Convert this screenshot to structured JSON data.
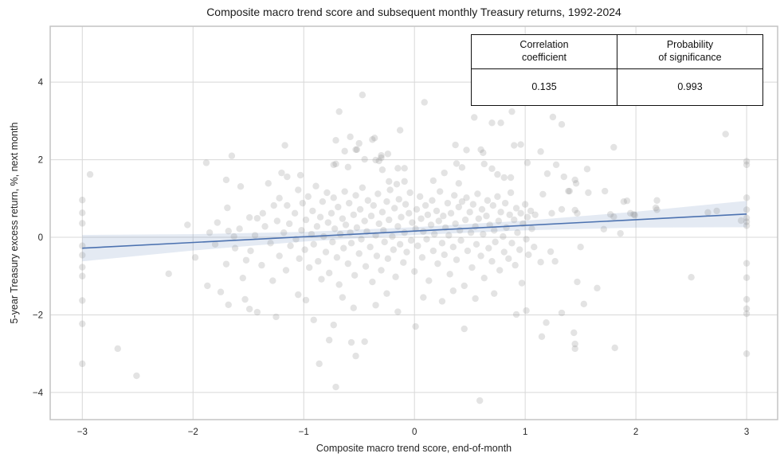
{
  "figure": {
    "title": "Composite macro trend score and subsequent monthly Treasury returns, 1992-2024",
    "background": "#ffffff"
  },
  "stats_table": {
    "col1": {
      "header_line1": "Correlation",
      "header_line2": "coefficient",
      "value": "0.135"
    },
    "col2": {
      "header_line1": "Probability",
      "header_line2": "of significance",
      "value": "0.993"
    }
  },
  "chart_data": {
    "type": "scatter",
    "title": "Composite macro trend score and subsequent monthly Treasury returns, 1992-2024",
    "xlabel": "Composite macro trend score, end-of-month",
    "ylabel": "5-year Treasury excess return, %, next month",
    "xlim": [
      -3.29,
      3.28
    ],
    "ylim": [
      -4.7,
      5.44
    ],
    "xticks": [
      -3,
      -2,
      -1,
      0,
      1,
      2,
      3
    ],
    "xtick_labels": [
      "−3",
      "−2",
      "−1",
      "0",
      "1",
      "2",
      "3"
    ],
    "yticks": [
      4,
      2,
      0,
      -2,
      -4
    ],
    "ytick_labels": [
      "4",
      "2",
      "0",
      "−2",
      "−4"
    ],
    "grid": true,
    "legend": null,
    "stats": {
      "correlation_coefficient": 0.135,
      "probability_of_significance": 0.993
    },
    "regression_line": {
      "x": [
        -3,
        3
      ],
      "y": [
        -0.28,
        0.6
      ]
    },
    "ci_band": {
      "x": [
        -3,
        -2,
        -1,
        0,
        1,
        2,
        3
      ],
      "upper": [
        0.06,
        0.08,
        0.14,
        0.26,
        0.43,
        0.66,
        0.94
      ],
      "lower": [
        -0.62,
        -0.34,
        -0.11,
        0.06,
        0.18,
        0.25,
        0.26
      ]
    },
    "style": {
      "accent": "#4c72b0",
      "band_color": "#4c72b0",
      "band_opacity": 0.15,
      "point_color": "#8c8c8c",
      "point_opacity": 0.24,
      "point_radius": 4.2,
      "grid_color": "#d8d8d8",
      "spine_color": "#c4c4c4",
      "text_color": "#262626"
    },
    "points": [
      [
        -3,
        0.96
      ],
      [
        -3,
        0.63
      ],
      [
        -3,
        0.36
      ],
      [
        -3,
        -0.22
      ],
      [
        -3,
        -0.46
      ],
      [
        -3,
        -0.77
      ],
      [
        -3,
        -1.0
      ],
      [
        -3,
        -1.63
      ],
      [
        -3,
        -2.23
      ],
      [
        -3,
        -3.26
      ],
      [
        -2.93,
        1.62
      ],
      [
        -2.68,
        -2.87
      ],
      [
        -2.51,
        -3.57
      ],
      [
        -2.22,
        -0.94
      ],
      [
        -2.05,
        0.32
      ],
      [
        -1.98,
        -0.52
      ],
      [
        -1.88,
        1.92
      ],
      [
        -1.87,
        -1.25
      ],
      [
        -1.75,
        -1.41
      ],
      [
        -1.68,
        -1.74
      ],
      [
        -1.53,
        -1.6
      ],
      [
        -1.49,
        -1.85
      ],
      [
        -1.42,
        -1.93
      ],
      [
        -1.7,
        1.48
      ],
      [
        -1.65,
        2.1
      ],
      [
        -1.57,
        1.31
      ],
      [
        -1.32,
        1.39
      ],
      [
        -1.2,
        1.66
      ],
      [
        -1.15,
        1.56
      ],
      [
        -1.03,
        1.6
      ],
      [
        -1.17,
        2.37
      ],
      [
        -1.69,
        0.76
      ],
      [
        -1.68,
        0.16
      ],
      [
        -1.63,
        0.02
      ],
      [
        -1.49,
        0.51
      ],
      [
        -1.42,
        0.49
      ],
      [
        -1.37,
        0.62
      ],
      [
        -1.27,
        0.82
      ],
      [
        -1.22,
        1.01
      ],
      [
        -1.15,
        0.82
      ],
      [
        -1.8,
        -0.18
      ],
      [
        -1.7,
        -0.69
      ],
      [
        -1.52,
        -0.59
      ],
      [
        -0.91,
        -2.13
      ],
      [
        -0.73,
        -2.26
      ],
      [
        -0.77,
        -2.65
      ],
      [
        -0.57,
        -2.71
      ],
      [
        -0.45,
        -2.69
      ],
      [
        -0.53,
        -3.06
      ],
      [
        -0.86,
        -3.26
      ],
      [
        -0.71,
        -3.86
      ],
      [
        0.01,
        -2.3
      ],
      [
        0.45,
        -2.36
      ],
      [
        0.59,
        -4.21
      ],
      [
        0.92,
        -1.99
      ],
      [
        1.01,
        -1.89
      ],
      [
        -0.47,
        3.67
      ],
      [
        0.09,
        3.48
      ],
      [
        -0.68,
        3.24
      ],
      [
        0.54,
        3.09
      ],
      [
        0.7,
        2.95
      ],
      [
        0.78,
        2.95
      ],
      [
        0.88,
        3.24
      ],
      [
        -0.13,
        2.76
      ],
      [
        -0.36,
        2.56
      ],
      [
        -0.71,
        2.5
      ],
      [
        -0.58,
        2.59
      ],
      [
        -0.5,
        2.42
      ],
      [
        -0.38,
        2.52
      ],
      [
        -0.52,
        2.26
      ],
      [
        0.37,
        2.38
      ],
      [
        0.47,
        2.25
      ],
      [
        0.6,
        2.26
      ],
      [
        0.62,
        2.18
      ],
      [
        0.9,
        2.37
      ],
      [
        0.96,
        2.39
      ],
      [
        1.14,
        2.21
      ],
      [
        -0.3,
        2.11
      ],
      [
        -0.24,
        2.15
      ],
      [
        -0.63,
        2.22
      ],
      [
        -0.53,
        2.26
      ],
      [
        -0.45,
        2.01
      ],
      [
        -0.35,
        1.99
      ],
      [
        -0.3,
        2.05
      ],
      [
        -0.71,
        1.89
      ],
      [
        -0.6,
        1.81
      ],
      [
        -0.73,
        1.87
      ],
      [
        -0.32,
        1.97
      ],
      [
        -0.29,
        1.74
      ],
      [
        -0.15,
        1.78
      ],
      [
        -0.09,
        1.78
      ],
      [
        0.27,
        1.66
      ],
      [
        0.38,
        1.9
      ],
      [
        0.43,
        1.8
      ],
      [
        0.63,
        1.89
      ],
      [
        0.7,
        1.77
      ],
      [
        0.75,
        1.62
      ],
      [
        0.81,
        1.54
      ],
      [
        0.87,
        1.54
      ],
      [
        1.02,
        1.92
      ],
      [
        1.2,
        1.64
      ],
      [
        0.17,
        1.46
      ],
      [
        0.4,
        1.39
      ],
      [
        -0.23,
        1.44
      ],
      [
        -0.16,
        1.37
      ],
      [
        -0.09,
        1.44
      ],
      [
        1.25,
        3.1
      ],
      [
        1.33,
        2.91
      ],
      [
        1.8,
        2.32
      ],
      [
        2.81,
        2.66
      ],
      [
        1.28,
        1.87
      ],
      [
        1.56,
        1.76
      ],
      [
        1.35,
        1.56
      ],
      [
        1.45,
        1.48
      ],
      [
        1.46,
        1.39
      ],
      [
        1.4,
        1.19
      ],
      [
        1.57,
        1.15
      ],
      [
        1.72,
        1.19
      ],
      [
        1.16,
        1.11
      ],
      [
        1.92,
        0.94
      ],
      [
        2.19,
        0.95
      ],
      [
        2.19,
        0.71
      ],
      [
        2.18,
        0.76
      ],
      [
        1.33,
        0.72
      ],
      [
        1.24,
        0.62
      ],
      [
        1.45,
        0.7
      ],
      [
        1.47,
        0.62
      ],
      [
        1.77,
        0.59
      ],
      [
        1.98,
        0.59
      ],
      [
        2.65,
        0.64
      ],
      [
        2.73,
        0.68
      ],
      [
        2.95,
        0.43
      ],
      [
        1.39,
        1.19
      ],
      [
        1.8,
        0.53
      ],
      [
        1.95,
        0.62
      ],
      [
        1.99,
        0.57
      ],
      [
        1.71,
        0.21
      ],
      [
        1.86,
        0.1
      ],
      [
        1.89,
        0.92
      ],
      [
        1.5,
        -0.25
      ],
      [
        1.23,
        -0.37
      ],
      [
        1.27,
        -0.62
      ],
      [
        1.14,
        -0.64
      ],
      [
        1.47,
        -1.15
      ],
      [
        1.65,
        -1.31
      ],
      [
        1.53,
        -1.72
      ],
      [
        1.33,
        -1.95
      ],
      [
        1.19,
        -2.2
      ],
      [
        1.15,
        -2.56
      ],
      [
        1.44,
        -2.46
      ],
      [
        1.45,
        -2.75
      ],
      [
        1.45,
        -2.87
      ],
      [
        1.81,
        -2.85
      ],
      [
        2.5,
        -1.03
      ],
      [
        3,
        1.96
      ],
      [
        3,
        1.87
      ],
      [
        3,
        1.02
      ],
      [
        3,
        0.71
      ],
      [
        3,
        0.5
      ],
      [
        3,
        0.4
      ],
      [
        3,
        0.3
      ],
      [
        3,
        -0.67
      ],
      [
        3,
        -1.04
      ],
      [
        3,
        -1.6
      ],
      [
        3,
        -1.84
      ],
      [
        3,
        -1.97
      ],
      [
        3,
        -3.0
      ],
      [
        -1.85,
        0.12
      ],
      [
        -1.78,
        0.38
      ],
      [
        -1.62,
        -0.28
      ],
      [
        -1.58,
        0.22
      ],
      [
        -1.55,
        -1.05
      ],
      [
        -1.48,
        -0.35
      ],
      [
        -1.44,
        0.05
      ],
      [
        -1.38,
        -0.72
      ],
      [
        -1.35,
        0.28
      ],
      [
        -1.3,
        -0.15
      ],
      [
        -1.28,
        -1.12
      ],
      [
        -1.24,
        0.42
      ],
      [
        -1.22,
        -0.48
      ],
      [
        -1.18,
        0.12
      ],
      [
        -1.16,
        -0.85
      ],
      [
        -1.13,
        0.35
      ],
      [
        -1.12,
        -0.22
      ],
      [
        -1.25,
        -2.05
      ],
      [
        -1.08,
        0.62
      ],
      [
        -1.07,
        -0.05
      ],
      [
        -1.05,
        1.22
      ],
      [
        -1.04,
        -0.55
      ],
      [
        -1.02,
        0.18
      ],
      [
        -1.01,
        0.88
      ],
      [
        -0.99,
        -0.32
      ],
      [
        -0.98,
        0.45
      ],
      [
        -0.96,
        1.05
      ],
      [
        -0.95,
        -0.78
      ],
      [
        -0.93,
        0.08
      ],
      [
        -0.92,
        0.68
      ],
      [
        -0.91,
        -0.18
      ],
      [
        -0.89,
        1.32
      ],
      [
        -0.88,
        0.28
      ],
      [
        -0.87,
        -0.62
      ],
      [
        -0.85,
        0.52
      ],
      [
        -0.84,
        -1.08
      ],
      [
        -0.83,
        0.92
      ],
      [
        -0.82,
        0.02
      ],
      [
        -0.8,
        -0.38
      ],
      [
        -0.79,
        1.15
      ],
      [
        -0.78,
        0.38
      ],
      [
        -0.77,
        -0.92
      ],
      [
        -0.75,
        0.62
      ],
      [
        -0.74,
        -0.12
      ],
      [
        -0.73,
        1.02
      ],
      [
        -0.72,
        0.22
      ],
      [
        -0.7,
        -0.52
      ],
      [
        -0.69,
        0.78
      ],
      [
        -0.68,
        -1.22
      ],
      [
        -0.67,
        0.08
      ],
      [
        -0.65,
        0.48
      ],
      [
        -0.64,
        -0.28
      ],
      [
        -0.63,
        1.18
      ],
      [
        -0.62,
        0.32
      ],
      [
        -0.6,
        -0.68
      ],
      [
        -0.59,
        0.88
      ],
      [
        -0.58,
        0.12
      ],
      [
        -0.57,
        -0.15
      ],
      [
        -0.55,
        0.58
      ],
      [
        -0.54,
        -0.98
      ],
      [
        -0.53,
        1.08
      ],
      [
        -0.52,
        0.25
      ],
      [
        -0.5,
        -0.42
      ],
      [
        -0.49,
        0.72
      ],
      [
        -0.48,
        -0.05
      ],
      [
        -0.47,
        1.28
      ],
      [
        -0.45,
        0.42
      ],
      [
        -0.44,
        -0.75
      ],
      [
        -0.43,
        0.15
      ],
      [
        -0.42,
        0.95
      ],
      [
        -0.4,
        -0.25
      ],
      [
        -0.39,
        0.55
      ],
      [
        -0.38,
        -1.15
      ],
      [
        -0.37,
        0.82
      ],
      [
        -0.35,
        0.05
      ],
      [
        -0.34,
        -0.48
      ],
      [
        -0.33,
        1.12
      ],
      [
        -0.32,
        0.35
      ],
      [
        -0.3,
        -0.85
      ],
      [
        -0.29,
        0.65
      ],
      [
        -0.28,
        0.18
      ],
      [
        -0.27,
        -0.12
      ],
      [
        -0.25,
        0.92
      ],
      [
        -0.24,
        -0.55
      ],
      [
        -0.23,
        0.45
      ],
      [
        -0.22,
        1.22
      ],
      [
        -0.2,
        0.02
      ],
      [
        -0.19,
        -0.32
      ],
      [
        -0.18,
        0.75
      ],
      [
        -0.17,
        -1.02
      ],
      [
        -0.15,
        0.28
      ],
      [
        -0.14,
        0.98
      ],
      [
        -0.13,
        -0.18
      ],
      [
        -0.12,
        0.52
      ],
      [
        -0.1,
        -0.65
      ],
      [
        -0.09,
        0.12
      ],
      [
        -0.08,
        0.85
      ],
      [
        -0.07,
        -0.38
      ],
      [
        -0.05,
        0.62
      ],
      [
        -0.04,
        1.15
      ],
      [
        -0.03,
        -0.08
      ],
      [
        -0.02,
        0.38
      ],
      [
        0.0,
        -0.88
      ],
      [
        0.01,
        0.22
      ],
      [
        0.02,
        0.72
      ],
      [
        0.03,
        -0.22
      ],
      [
        0.05,
        1.05
      ],
      [
        0.06,
        0.48
      ],
      [
        0.07,
        -0.52
      ],
      [
        0.08,
        0.15
      ],
      [
        0.1,
        0.82
      ],
      [
        0.11,
        -0.05
      ],
      [
        0.12,
        0.58
      ],
      [
        0.13,
        -1.12
      ],
      [
        0.15,
        0.32
      ],
      [
        0.16,
        0.95
      ],
      [
        0.17,
        -0.35
      ],
      [
        0.18,
        0.08
      ],
      [
        0.2,
        0.68
      ],
      [
        0.21,
        -0.68
      ],
      [
        0.22,
        0.42
      ],
      [
        0.23,
        1.18
      ],
      [
        0.25,
        -0.15
      ],
      [
        0.26,
        0.55
      ],
      [
        0.27,
        -0.45
      ],
      [
        0.28,
        0.25
      ],
      [
        0.3,
        0.88
      ],
      [
        0.31,
        0.05
      ],
      [
        0.32,
        -0.95
      ],
      [
        0.33,
        0.62
      ],
      [
        0.35,
        -0.25
      ],
      [
        0.36,
        1.08
      ],
      [
        0.37,
        0.35
      ],
      [
        0.38,
        -0.58
      ],
      [
        0.4,
        0.78
      ],
      [
        0.41,
        0.18
      ],
      [
        0.42,
        -0.08
      ],
      [
        0.43,
        0.92
      ],
      [
        0.45,
        -1.25
      ],
      [
        0.46,
        0.45
      ],
      [
        0.47,
        1.02
      ],
      [
        0.48,
        -0.35
      ],
      [
        0.5,
        0.65
      ],
      [
        0.51,
        0.12
      ],
      [
        0.52,
        -0.78
      ],
      [
        0.53,
        0.85
      ],
      [
        0.55,
        0.28
      ],
      [
        0.56,
        -0.18
      ],
      [
        0.57,
        1.12
      ],
      [
        0.58,
        0.48
      ],
      [
        0.6,
        -0.48
      ],
      [
        0.61,
        0.72
      ],
      [
        0.62,
        0.08
      ],
      [
        0.63,
        -1.05
      ],
      [
        0.65,
        0.55
      ],
      [
        0.66,
        0.95
      ],
      [
        0.67,
        -0.28
      ],
      [
        0.68,
        0.32
      ],
      [
        0.7,
        -0.62
      ],
      [
        0.71,
        0.82
      ],
      [
        0.72,
        0.18
      ],
      [
        0.73,
        -0.12
      ],
      [
        0.75,
        1.05
      ],
      [
        0.76,
        0.42
      ],
      [
        0.77,
        -0.85
      ],
      [
        0.78,
        0.65
      ],
      [
        0.8,
        0.02
      ],
      [
        0.81,
        -0.38
      ],
      [
        0.82,
        0.88
      ],
      [
        0.83,
        0.25
      ],
      [
        0.85,
        -0.55
      ],
      [
        0.86,
        0.58
      ],
      [
        0.87,
        1.15
      ],
      [
        0.88,
        -0.15
      ],
      [
        0.9,
        0.45
      ],
      [
        0.91,
        -0.72
      ],
      [
        0.92,
        0.75
      ],
      [
        0.93,
        0.12
      ],
      [
        0.95,
        -0.32
      ],
      [
        0.96,
        0.62
      ],
      [
        0.97,
        -1.18
      ],
      [
        0.98,
        0.35
      ],
      [
        1.0,
        0.85
      ],
      [
        1.01,
        -0.05
      ],
      [
        1.02,
        0.52
      ],
      [
        1.03,
        -0.45
      ],
      [
        1.05,
        0.68
      ],
      [
        1.06,
        0.22
      ],
      [
        1.08,
        -0.25
      ],
      [
        1.09,
        0.58
      ],
      [
        -0.35,
        -1.75
      ],
      [
        -0.15,
        -1.92
      ],
      [
        0.25,
        -1.65
      ],
      [
        -0.55,
        -1.82
      ],
      [
        0.08,
        -1.55
      ],
      [
        -0.98,
        -1.62
      ],
      [
        0.72,
        -1.45
      ],
      [
        -1.05,
        -1.48
      ],
      [
        0.35,
        -1.38
      ],
      [
        0.55,
        -1.58
      ],
      [
        -0.25,
        -1.45
      ],
      [
        -0.65,
        -1.55
      ]
    ]
  }
}
